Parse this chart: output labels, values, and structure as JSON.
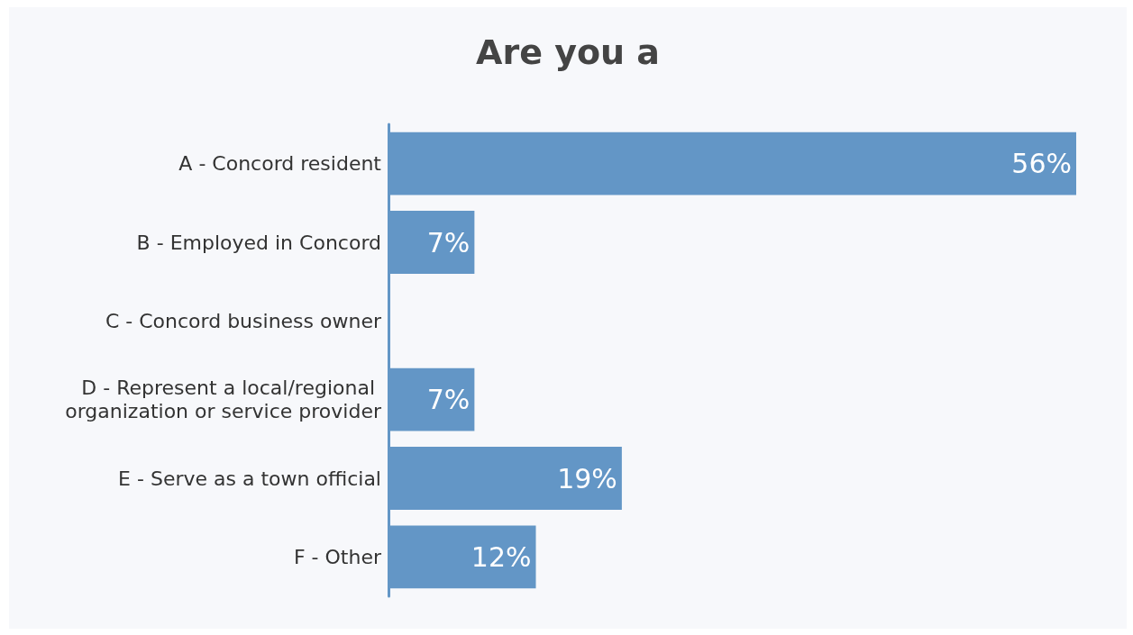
{
  "chart_data": {
    "type": "bar",
    "orientation": "horizontal",
    "title": "Are you a",
    "categories": [
      "A - Concord resident",
      "B - Employed in Concord",
      "C - Concord business owner",
      "D - Represent a local/regional organization or service provider",
      "E - Serve as a town official",
      "F - Other"
    ],
    "values": [
      56,
      7,
      0,
      7,
      19,
      12
    ],
    "value_labels": [
      "56%",
      "7%",
      null,
      "7%",
      "19%",
      "12%"
    ],
    "color": "#6396c6"
  }
}
